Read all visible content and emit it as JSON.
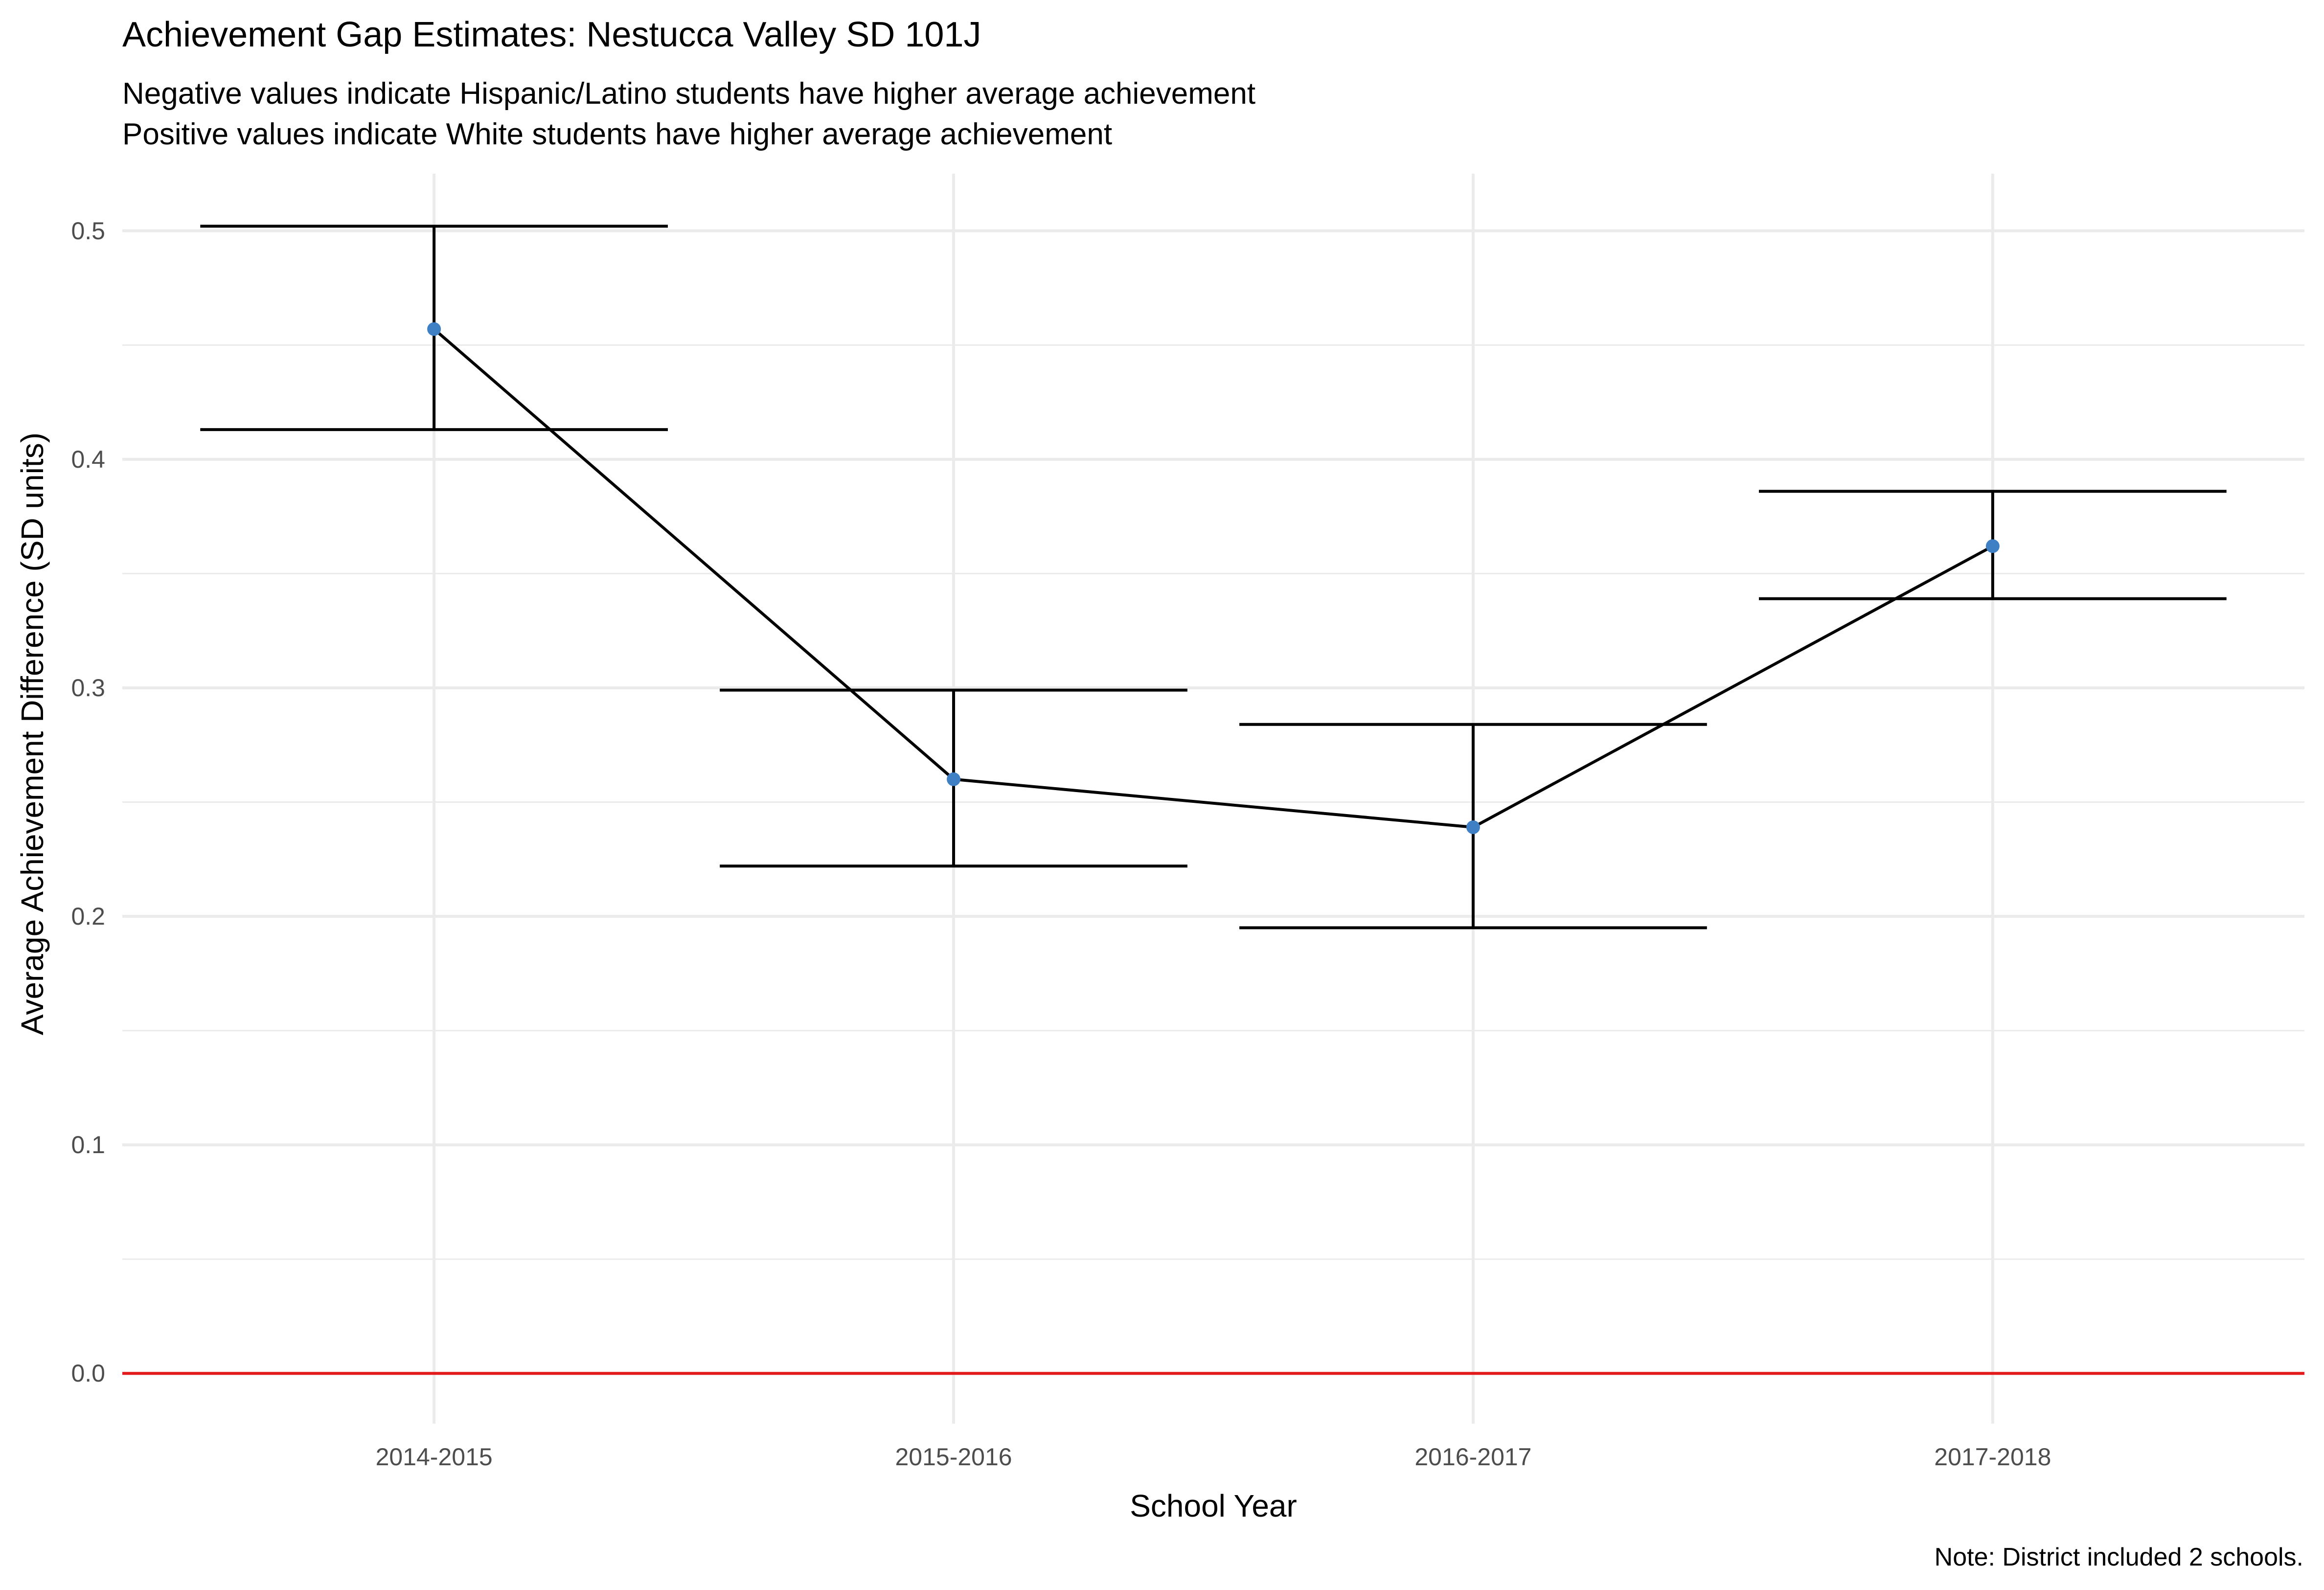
{
  "chart_data": {
    "type": "line",
    "title": "Achievement Gap Estimates: Nestucca Valley SD 101J",
    "subtitle_lines": [
      "Negative values indicate Hispanic/Latino students have higher average achievement",
      "Positive values indicate White students have higher average achievement"
    ],
    "xlabel": "School Year",
    "ylabel": "Average Achievement Difference (SD units)",
    "caption": "Note: District included 2 schools.",
    "categories": [
      "2014-2015",
      "2015-2016",
      "2016-2017",
      "2017-2018"
    ],
    "values": [
      0.457,
      0.26,
      0.239,
      0.362
    ],
    "error_lower": [
      0.413,
      0.222,
      0.195,
      0.339
    ],
    "error_upper": [
      0.502,
      0.299,
      0.284,
      0.386
    ],
    "yticks": [
      0.0,
      0.1,
      0.2,
      0.3,
      0.4,
      0.5
    ],
    "ytick_labels": [
      "0.0",
      "0.1",
      "0.2",
      "0.3",
      "0.4",
      "0.5"
    ],
    "ylim": [
      -0.022,
      0.525
    ],
    "reference_line": 0.0,
    "grid": true,
    "colors": {
      "point": "#3f7fc4",
      "line": "#000000",
      "errorbar": "#000000",
      "reference": "#e31a1c",
      "grid": "#ebebeb"
    }
  }
}
